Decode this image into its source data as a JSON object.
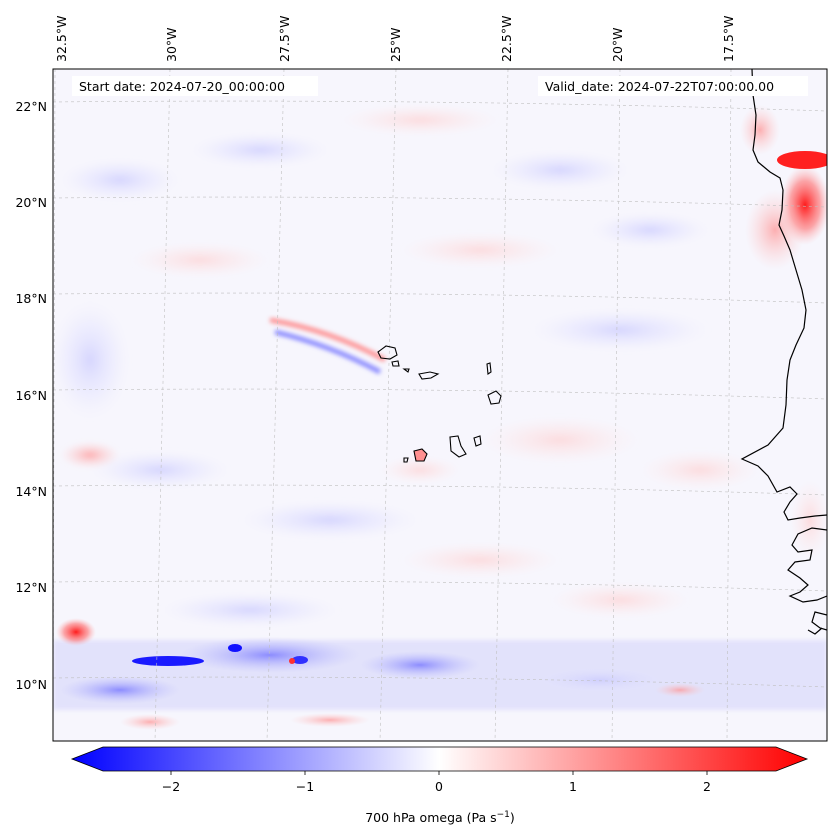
{
  "map": {
    "start_date": "Start date: 2024-07-20_00:00:00",
    "valid_date": "Valid_date: 2024-07-22T07:00:00.00",
    "lon_labels": [
      "32.5°W",
      "30°W",
      "27.5°W",
      "25°W",
      "22.5°W",
      "20°W",
      "17.5°W"
    ],
    "lat_labels": [
      "22°N",
      "20°N",
      "18°N",
      "16°N",
      "14°N",
      "12°N",
      "10°N"
    ],
    "features": [
      "coastline-west-africa",
      "cape-verde-islands"
    ],
    "anomalies": [
      {
        "name": "anomaly-positive-mauritania-coast",
        "sign": "positive"
      },
      {
        "name": "anomaly-negative-itcz-streak",
        "sign": "negative"
      },
      {
        "name": "anomaly-positive-southwest",
        "sign": "positive"
      }
    ]
  },
  "colorbar": {
    "label": "700 hPa omega (Pa s",
    "label_superscript": "−1",
    "label_close": ")",
    "ticks": [
      "−2",
      "−1",
      "0",
      "1",
      "2"
    ],
    "colors": {
      "min": "#0000ff",
      "mid": "#ffffff",
      "max": "#ff0000"
    }
  }
}
